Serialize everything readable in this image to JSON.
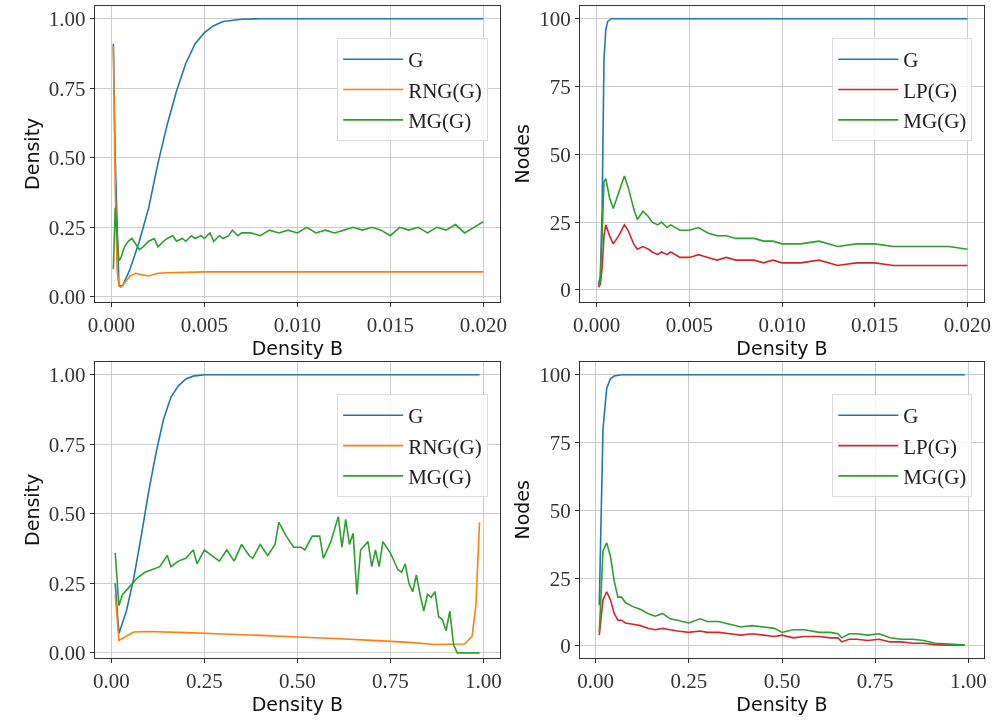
{
  "chart_data": [
    {
      "type": "line",
      "xlabel": "Density B",
      "ylabel": "Density",
      "xlim": [
        -0.0009,
        0.0209
      ],
      "ylim": [
        -0.017,
        1.046
      ],
      "xticks": [
        {
          "value": 0,
          "label": "0.000"
        },
        {
          "value": 0.005,
          "label": "0.005"
        },
        {
          "value": 0.01,
          "label": "0.010"
        },
        {
          "value": 0.015,
          "label": "0.015"
        },
        {
          "value": 0.02,
          "label": "0.020"
        }
      ],
      "yticks": [
        {
          "value": 0,
          "label": "0.00"
        },
        {
          "value": 0.25,
          "label": "0.25"
        },
        {
          "value": 0.5,
          "label": "0.50"
        },
        {
          "value": 0.75,
          "label": "0.75"
        },
        {
          "value": 1,
          "label": "1.00"
        }
      ],
      "grid": true,
      "legend": "top right",
      "marker": "none",
      "line_style": "solid",
      "series": [
        {
          "name": "G",
          "color": "#1f77b4",
          "x": [
            0.0001,
            0.0002,
            0.0004,
            0.0006,
            0.0008,
            0.001,
            0.0015,
            0.002,
            0.0025,
            0.003,
            0.0035,
            0.004,
            0.0045,
            0.005,
            0.0055,
            0.006,
            0.007,
            0.008,
            0.02
          ],
          "values": [
            0.91,
            0.5,
            0.04,
            0.04,
            0.07,
            0.1,
            0.2,
            0.32,
            0.48,
            0.62,
            0.74,
            0.84,
            0.91,
            0.95,
            0.975,
            0.99,
            0.998,
            1.0,
            1.0
          ]
        },
        {
          "name": "RNG(G)",
          "color": "#ff7f0e",
          "x": [
            0.0001,
            0.0002,
            0.0003,
            0.0004,
            0.0005,
            0.0007,
            0.001,
            0.0013,
            0.0016,
            0.002,
            0.0025,
            0.003,
            0.005,
            0.01,
            0.02
          ],
          "values": [
            0.9,
            0.4,
            0.1,
            0.04,
            0.035,
            0.05,
            0.075,
            0.085,
            0.08,
            0.075,
            0.085,
            0.087,
            0.09,
            0.09,
            0.09
          ]
        },
        {
          "name": "MG(G)",
          "color": "#2ca02c",
          "x": [
            0.0001,
            0.0002,
            0.0003,
            0.0004,
            0.0005,
            0.0007,
            0.0009,
            0.0011,
            0.0013,
            0.0015,
            0.0017,
            0.002,
            0.0023,
            0.0025,
            0.0028,
            0.003,
            0.0033,
            0.0035,
            0.0038,
            0.004,
            0.0043,
            0.0045,
            0.0048,
            0.005,
            0.0053,
            0.0055,
            0.0058,
            0.006,
            0.0063,
            0.0065,
            0.0068,
            0.007,
            0.0075,
            0.008,
            0.0085,
            0.009,
            0.0095,
            0.01,
            0.0105,
            0.011,
            0.0115,
            0.012,
            0.0125,
            0.013,
            0.0135,
            0.014,
            0.0145,
            0.015,
            0.0155,
            0.016,
            0.0165,
            0.017,
            0.0175,
            0.018,
            0.0185,
            0.019,
            0.0195,
            0.02
          ],
          "values": [
            0.1,
            0.32,
            0.22,
            0.13,
            0.14,
            0.18,
            0.2,
            0.21,
            0.19,
            0.17,
            0.18,
            0.2,
            0.21,
            0.18,
            0.2,
            0.21,
            0.22,
            0.2,
            0.21,
            0.2,
            0.22,
            0.21,
            0.22,
            0.21,
            0.23,
            0.2,
            0.22,
            0.21,
            0.22,
            0.24,
            0.22,
            0.23,
            0.23,
            0.22,
            0.24,
            0.23,
            0.24,
            0.23,
            0.25,
            0.23,
            0.24,
            0.23,
            0.24,
            0.25,
            0.24,
            0.25,
            0.24,
            0.22,
            0.25,
            0.24,
            0.25,
            0.23,
            0.25,
            0.24,
            0.26,
            0.23,
            0.25,
            0.27
          ]
        }
      ]
    },
    {
      "type": "line",
      "xlabel": "Density B",
      "ylabel": "Nodes",
      "xlim": [
        -0.0009,
        0.0209
      ],
      "ylim": [
        -4.3,
        104.7
      ],
      "xticks": [
        {
          "value": 0,
          "label": "0.000"
        },
        {
          "value": 0.005,
          "label": "0.005"
        },
        {
          "value": 0.01,
          "label": "0.010"
        },
        {
          "value": 0.015,
          "label": "0.015"
        },
        {
          "value": 0.02,
          "label": "0.020"
        }
      ],
      "yticks": [
        0,
        25,
        50,
        75,
        100
      ],
      "grid": true,
      "legend": "top right",
      "marker": "none",
      "line_style": "solid",
      "series": [
        {
          "name": "G",
          "color": "#1f77b4",
          "x": [
            0.0001,
            0.0002,
            0.0003,
            0.0004,
            0.0005,
            0.0006,
            0.0008,
            0.02
          ],
          "values": [
            2,
            5,
            30,
            85,
            96,
            99,
            100,
            100
          ]
        },
        {
          "name": "LP(G)",
          "color": "#d62728",
          "x": [
            0.0001,
            0.0002,
            0.0003,
            0.0004,
            0.0005,
            0.0007,
            0.0009,
            0.0012,
            0.0015,
            0.0017,
            0.002,
            0.0022,
            0.0025,
            0.0028,
            0.003,
            0.0033,
            0.0035,
            0.0038,
            0.004,
            0.0045,
            0.005,
            0.0055,
            0.006,
            0.0065,
            0.007,
            0.0075,
            0.008,
            0.0085,
            0.009,
            0.0095,
            0.01,
            0.011,
            0.012,
            0.013,
            0.014,
            0.015,
            0.016,
            0.017,
            0.018,
            0.019,
            0.02
          ],
          "values": [
            1,
            2,
            8,
            20,
            24,
            20,
            17,
            20,
            24,
            22,
            17,
            15,
            16,
            15,
            14,
            13,
            14,
            13,
            14,
            12,
            12,
            13,
            12,
            11,
            12,
            11,
            11,
            11,
            10,
            11,
            10,
            10,
            11,
            9,
            10,
            10,
            9,
            9,
            9,
            9,
            9
          ]
        },
        {
          "name": "MG(G)",
          "color": "#2ca02c",
          "x": [
            0.0001,
            0.0002,
            0.0003,
            0.0004,
            0.0005,
            0.0007,
            0.0009,
            0.0012,
            0.0015,
            0.0017,
            0.002,
            0.0022,
            0.0025,
            0.0028,
            0.003,
            0.0033,
            0.0035,
            0.0038,
            0.004,
            0.0045,
            0.005,
            0.0055,
            0.006,
            0.0065,
            0.007,
            0.0075,
            0.008,
            0.0085,
            0.009,
            0.0095,
            0.01,
            0.011,
            0.012,
            0.013,
            0.014,
            0.015,
            0.016,
            0.017,
            0.018,
            0.019,
            0.02
          ],
          "values": [
            1.5,
            3,
            20,
            40,
            41,
            34,
            30,
            36,
            42,
            38,
            30,
            26,
            29,
            27,
            25,
            24,
            25,
            23,
            24,
            22,
            22,
            23,
            21,
            20,
            20,
            19,
            19,
            19,
            18,
            18,
            17,
            17,
            18,
            16,
            17,
            17,
            16,
            16,
            16,
            16,
            15
          ]
        }
      ]
    },
    {
      "type": "line",
      "xlabel": "Density B",
      "ylabel": "Density",
      "xlim": [
        -0.045,
        1.045
      ],
      "ylim": [
        -0.017,
        1.046
      ],
      "xticks": [
        {
          "value": 0,
          "label": "0.00"
        },
        {
          "value": 0.25,
          "label": "0.25"
        },
        {
          "value": 0.5,
          "label": "0.50"
        },
        {
          "value": 0.75,
          "label": "0.75"
        },
        {
          "value": 1,
          "label": "1.00"
        }
      ],
      "yticks": [
        {
          "value": 0,
          "label": "0.00"
        },
        {
          "value": 0.25,
          "label": "0.25"
        },
        {
          "value": 0.5,
          "label": "0.50"
        },
        {
          "value": 0.75,
          "label": "0.75"
        },
        {
          "value": 1,
          "label": "1.00"
        }
      ],
      "grid": true,
      "legend": "top right",
      "marker": "none",
      "line_style": "solid",
      "series": [
        {
          "name": "G",
          "color": "#1f77b4",
          "x": [
            0.01,
            0.02,
            0.04,
            0.06,
            0.08,
            0.1,
            0.12,
            0.14,
            0.16,
            0.18,
            0.2,
            0.22,
            0.25,
            0.99
          ],
          "values": [
            0.25,
            0.07,
            0.15,
            0.27,
            0.42,
            0.58,
            0.72,
            0.84,
            0.92,
            0.96,
            0.985,
            0.995,
            1.0,
            1.0
          ]
        },
        {
          "name": "RNG(G)",
          "color": "#ff7f0e",
          "x": [
            0.01,
            0.02,
            0.06,
            0.1,
            0.2,
            0.3,
            0.4,
            0.5,
            0.6,
            0.7,
            0.8,
            0.87,
            0.95,
            0.97,
            0.98,
            0.99
          ],
          "values": [
            0.21,
            0.045,
            0.075,
            0.077,
            0.073,
            0.068,
            0.063,
            0.057,
            0.052,
            0.045,
            0.038,
            0.03,
            0.032,
            0.06,
            0.17,
            0.47
          ]
        },
        {
          "name": "MG(G)",
          "color": "#2ca02c",
          "x": [
            0.01,
            0.02,
            0.03,
            0.05,
            0.07,
            0.09,
            0.11,
            0.13,
            0.15,
            0.16,
            0.18,
            0.2,
            0.22,
            0.23,
            0.25,
            0.27,
            0.29,
            0.31,
            0.33,
            0.35,
            0.37,
            0.38,
            0.4,
            0.42,
            0.44,
            0.45,
            0.47,
            0.49,
            0.51,
            0.52,
            0.54,
            0.56,
            0.57,
            0.59,
            0.61,
            0.62,
            0.63,
            0.64,
            0.65,
            0.66,
            0.67,
            0.69,
            0.7,
            0.71,
            0.72,
            0.73,
            0.75,
            0.77,
            0.78,
            0.79,
            0.8,
            0.81,
            0.82,
            0.83,
            0.84,
            0.85,
            0.86,
            0.87,
            0.88,
            0.89,
            0.9,
            0.91,
            0.92,
            0.93,
            0.99
          ],
          "values": [
            0.36,
            0.17,
            0.21,
            0.24,
            0.27,
            0.29,
            0.3,
            0.31,
            0.35,
            0.31,
            0.33,
            0.34,
            0.37,
            0.32,
            0.37,
            0.35,
            0.33,
            0.37,
            0.33,
            0.39,
            0.35,
            0.34,
            0.39,
            0.35,
            0.39,
            0.47,
            0.42,
            0.38,
            0.38,
            0.37,
            0.42,
            0.42,
            0.34,
            0.4,
            0.49,
            0.38,
            0.48,
            0.39,
            0.43,
            0.21,
            0.37,
            0.4,
            0.31,
            0.37,
            0.31,
            0.4,
            0.36,
            0.3,
            0.29,
            0.32,
            0.25,
            0.22,
            0.28,
            0.21,
            0.15,
            0.21,
            0.2,
            0.22,
            0.13,
            0.12,
            0.08,
            0.15,
            0.03,
            0.0,
            0.0
          ]
        }
      ]
    },
    {
      "type": "line",
      "xlabel": "Density B",
      "ylabel": "Nodes",
      "xlim": [
        -0.042,
        1.042
      ],
      "ylim": [
        -4.3,
        104.7
      ],
      "xticks": [
        {
          "value": 0,
          "label": "0.00"
        },
        {
          "value": 0.25,
          "label": "0.25"
        },
        {
          "value": 0.5,
          "label": "0.50"
        },
        {
          "value": 0.75,
          "label": "0.75"
        },
        {
          "value": 1,
          "label": "1.00"
        }
      ],
      "yticks": [
        0,
        25,
        50,
        75,
        100
      ],
      "grid": true,
      "legend": "top right",
      "marker": "none",
      "line_style": "solid",
      "series": [
        {
          "name": "G",
          "color": "#1f77b4",
          "x": [
            0.01,
            0.02,
            0.03,
            0.04,
            0.05,
            0.07,
            0.99
          ],
          "values": [
            15,
            80,
            95,
            98.5,
            99.5,
            100,
            100
          ]
        },
        {
          "name": "LP(G)",
          "color": "#d62728",
          "x": [
            0.01,
            0.02,
            0.03,
            0.04,
            0.05,
            0.06,
            0.07,
            0.08,
            0.1,
            0.12,
            0.14,
            0.16,
            0.18,
            0.2,
            0.22,
            0.25,
            0.28,
            0.3,
            0.33,
            0.36,
            0.39,
            0.42,
            0.45,
            0.48,
            0.5,
            0.53,
            0.56,
            0.6,
            0.63,
            0.65,
            0.66,
            0.68,
            0.7,
            0.73,
            0.76,
            0.79,
            0.82,
            0.85,
            0.88,
            0.91,
            0.94,
            0.97,
            0.99
          ],
          "values": [
            4,
            17,
            20,
            17,
            12,
            9.5,
            9.5,
            8.5,
            8,
            7.5,
            6.5,
            6,
            6.5,
            6,
            5.5,
            5,
            5.5,
            5,
            5,
            4.5,
            4,
            4.5,
            4,
            3.5,
            4,
            3,
            3.5,
            3.5,
            3,
            3,
            1.5,
            2.5,
            2.5,
            2,
            2.5,
            1.5,
            1.5,
            1,
            1,
            0.5,
            0.3,
            0.3,
            0.3
          ]
        },
        {
          "name": "MG(G)",
          "color": "#2ca02c",
          "x": [
            0.01,
            0.02,
            0.03,
            0.04,
            0.05,
            0.06,
            0.07,
            0.08,
            0.1,
            0.12,
            0.14,
            0.16,
            0.18,
            0.2,
            0.22,
            0.25,
            0.28,
            0.3,
            0.33,
            0.36,
            0.39,
            0.42,
            0.45,
            0.48,
            0.5,
            0.53,
            0.56,
            0.6,
            0.63,
            0.65,
            0.66,
            0.68,
            0.7,
            0.73,
            0.76,
            0.79,
            0.82,
            0.85,
            0.88,
            0.91,
            0.94,
            0.97,
            0.99
          ],
          "values": [
            5,
            35,
            38,
            33,
            24,
            18,
            18,
            16,
            14.5,
            13.5,
            12,
            11,
            12,
            10,
            9.5,
            8.5,
            10,
            9,
            9,
            8,
            7,
            7.5,
            7,
            6.5,
            5,
            6,
            6,
            5,
            5,
            4.5,
            3,
            4.5,
            4.5,
            4,
            4.5,
            3,
            2.5,
            2.5,
            2,
            1,
            0.8,
            0.5,
            0.3
          ]
        }
      ]
    }
  ]
}
